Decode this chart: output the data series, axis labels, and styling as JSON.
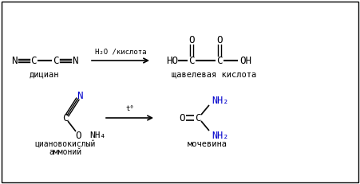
{
  "bg_color": "#ffffff",
  "border_color": "#000000",
  "top_reaction": {
    "reactant_label": "дициан",
    "product_label": "щавелевая кислота",
    "arrow_label": "H₂O /кислота"
  },
  "bottom_reaction": {
    "reactant_label_1": "циановокислый",
    "reactant_label_2": "аммоний",
    "product_label": "мочевина",
    "arrow_label": "t⁰"
  },
  "blue": "#0000cc",
  "black": "#000000"
}
